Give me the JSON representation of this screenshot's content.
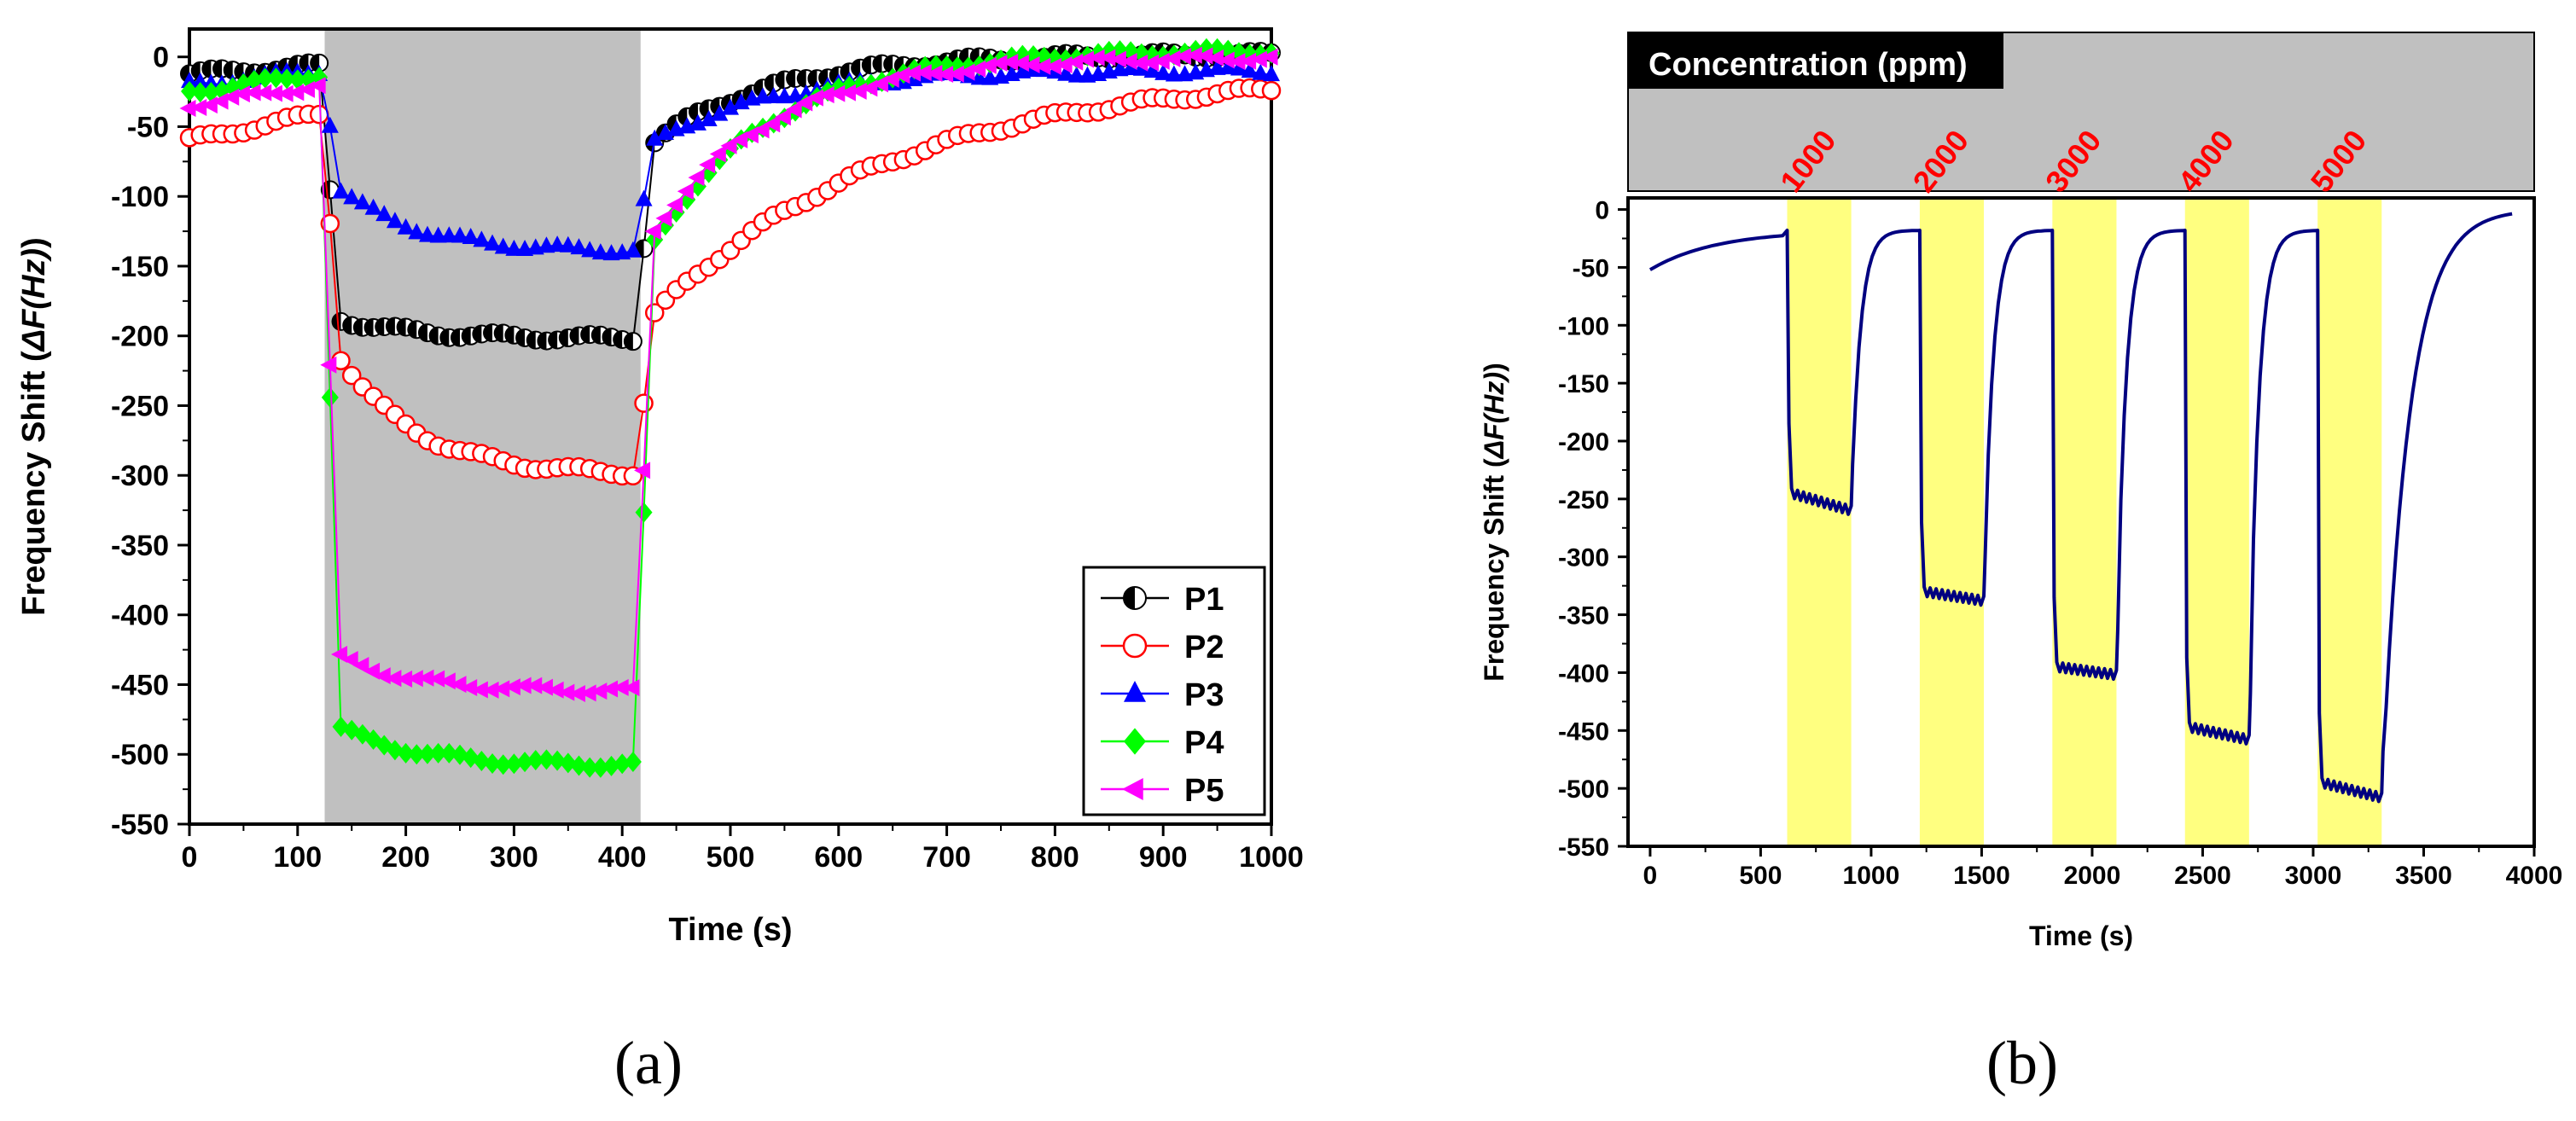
{
  "chart_data": [
    {
      "type": "scatter",
      "panel_label": "(a)",
      "title": "",
      "xlabel": "Time (s)",
      "ylabel_prefix": "Frequency Shift (",
      "ylabel_symbol": "ΔF(Hz)",
      "ylabel_suffix": ")",
      "xlim": [
        0,
        1000
      ],
      "ylim": [
        -550,
        20
      ],
      "xticks": [
        0,
        100,
        200,
        300,
        400,
        500,
        600,
        700,
        800,
        900,
        1000
      ],
      "yticks": [
        0,
        -50,
        -100,
        -150,
        -200,
        -250,
        -300,
        -350,
        -400,
        -450,
        -500,
        -550
      ],
      "shaded_region": {
        "from": 125,
        "to": 417,
        "color": "#c0c0c0"
      },
      "legend_position": "bottom-right",
      "series": [
        {
          "name": "P1",
          "color": "#000000",
          "marker": "half-circle",
          "baseline_start": -12,
          "baseline_end": -6,
          "exposure_start": -185,
          "exposure_end": -202,
          "recovery_start": -68,
          "final": 2
        },
        {
          "name": "P2",
          "color": "#ff0000",
          "marker": "open-circle",
          "baseline_start": -60,
          "baseline_end": -40,
          "exposure_start": -195,
          "exposure_end": -300,
          "recovery_start": -195,
          "final": -10
        },
        {
          "name": "P3",
          "color": "#0000ff",
          "marker": "triangle-up",
          "baseline_start": -20,
          "baseline_end": -10,
          "exposure_start": -85,
          "exposure_end": -140,
          "recovery_start": -68,
          "final": -10
        },
        {
          "name": "P4",
          "color": "#00ff00",
          "marker": "diamond",
          "baseline_start": -25,
          "baseline_end": -12,
          "exposure_start": -475,
          "exposure_end": -508,
          "recovery_start": -150,
          "final": 5
        },
        {
          "name": "P5",
          "color": "#ff00ff",
          "marker": "triangle-left",
          "baseline_start": -35,
          "baseline_end": -20,
          "exposure_start": -425,
          "exposure_end": -455,
          "recovery_start": -140,
          "final": 0
        }
      ]
    },
    {
      "type": "line",
      "panel_label": "(b)",
      "title": "",
      "header_label": "Concentration (ppm)",
      "xlabel": "Time (s)",
      "ylabel_prefix": "Frequency Shift (",
      "ylabel_symbol": "ΔF(Hz)",
      "ylabel_suffix": ")",
      "xlim": [
        -100,
        4000
      ],
      "ylim": [
        -550,
        10
      ],
      "xticks": [
        0,
        500,
        1000,
        1500,
        2000,
        2500,
        3000,
        3500,
        4000
      ],
      "yticks": [
        0,
        -50,
        -100,
        -150,
        -200,
        -250,
        -300,
        -350,
        -400,
        -450,
        -500,
        -550
      ],
      "line_color": "#000080",
      "highlight_color": "#ffff80",
      "exposures": [
        {
          "label": "1000",
          "start": 620,
          "end": 910,
          "level_start": -245,
          "level_end": -260
        },
        {
          "label": "2000",
          "start": 1220,
          "end": 1510,
          "level_start": -330,
          "level_end": -338
        },
        {
          "label": "3000",
          "start": 1820,
          "end": 2110,
          "level_start": -395,
          "level_end": -402
        },
        {
          "label": "4000",
          "start": 2420,
          "end": 2710,
          "level_start": -447,
          "level_end": -458
        },
        {
          "label": "5000",
          "start": 3020,
          "end": 3310,
          "level_start": -495,
          "level_end": -508
        }
      ],
      "baseline_start": -52,
      "recovery_level": -18,
      "final": 0,
      "end_time": 3900
    }
  ]
}
